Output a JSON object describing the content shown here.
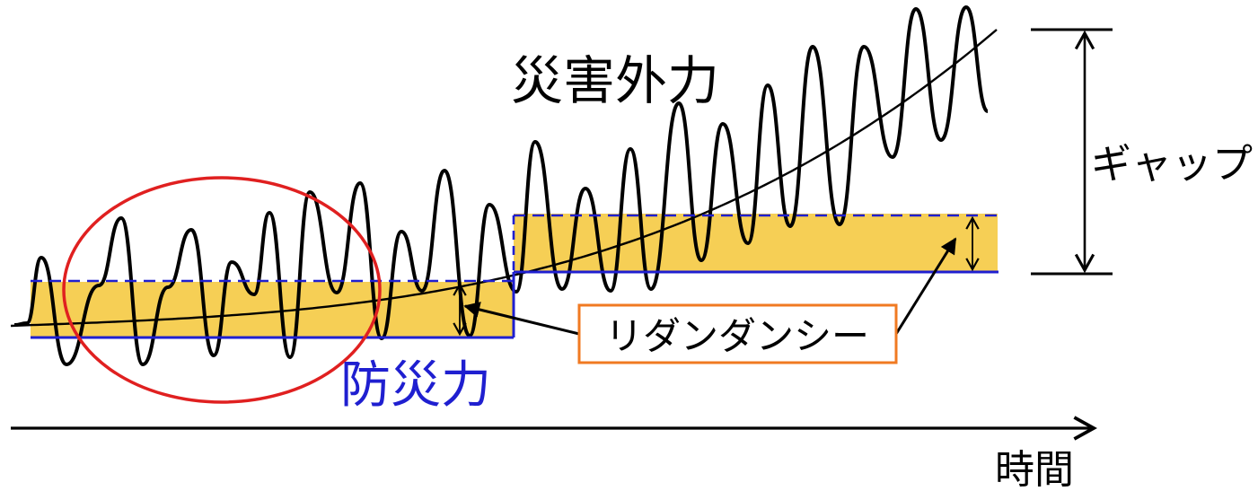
{
  "labels": {
    "hazard": "災害外力",
    "capacity": "防災力",
    "gap": "ギャップ",
    "redundancy": "リダンダンシー",
    "time": "時間"
  },
  "colors": {
    "wave": "#000000",
    "trend": "#000000",
    "capacity_line": "#1f1fd0",
    "band_fill": "#f6cf55",
    "ellipse": "#e02020",
    "callout_border": "#f07a22",
    "axis": "#000000"
  }
}
